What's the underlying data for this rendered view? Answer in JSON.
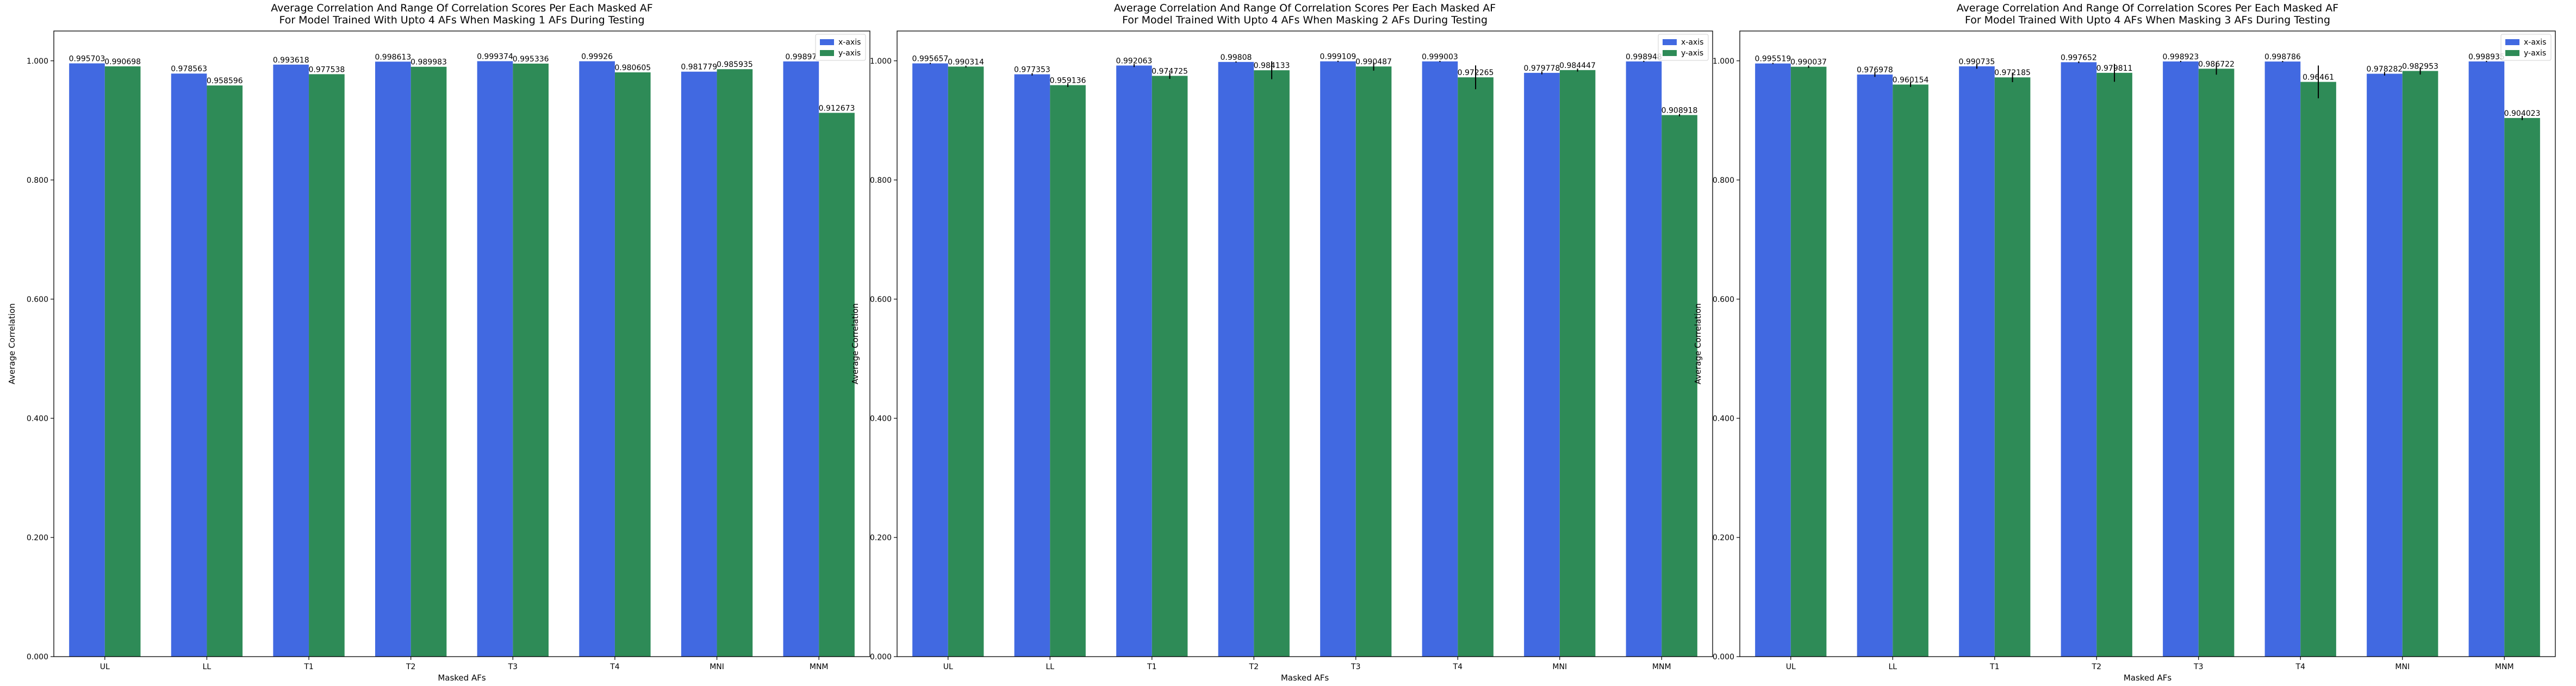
{
  "figure": {
    "x_label": "Masked AFs",
    "y_label": "Average Correlation",
    "y_ticks": [
      "0.000",
      "0.200",
      "0.400",
      "0.600",
      "0.800",
      "1.000"
    ],
    "colors": {
      "x_axis": "#4169e1",
      "y_axis": "#2e8b57",
      "error_bar": "#000000",
      "frame": "#000000"
    }
  },
  "chart_data": [
    {
      "type": "bar",
      "title": "Average Correlation And Range Of Correlation Scores Per Each Masked AF\nFor Model Trained With Upto 4 AFs When Masking 1 AFs During Testing",
      "xlabel": "Masked AFs",
      "ylabel": "Average Correlation",
      "ylim": [
        0,
        1.05
      ],
      "legend_position": "top-right",
      "grid": false,
      "categories": [
        "UL",
        "LL",
        "T1",
        "T2",
        "T3",
        "T4",
        "MNI",
        "MNM"
      ],
      "series": [
        {
          "name": "x-axis",
          "color": "#4169e1",
          "values": [
            0.995703,
            0.978563,
            0.993618,
            0.998613,
            0.999374,
            0.99926,
            0.981779,
            0.99897
          ],
          "labels": [
            "0.995703",
            "0.978563",
            "0.993618",
            "0.998613",
            "0.999374",
            "0.99926",
            "0.981779",
            "0.99897"
          ],
          "errors": [
            0,
            0,
            0,
            0,
            0,
            0,
            0,
            0
          ]
        },
        {
          "name": "y-axis",
          "color": "#2e8b57",
          "values": [
            0.990698,
            0.958596,
            0.977538,
            0.989983,
            0.995336,
            0.980605,
            0.985935,
            0.912673
          ],
          "labels": [
            "0.990698",
            "0.958596",
            "0.977538",
            "0.989983",
            "0.995336",
            "0.980605",
            "0.985935",
            "0.912673"
          ],
          "errors": [
            0,
            0,
            0,
            0,
            0,
            0,
            0,
            0
          ]
        }
      ]
    },
    {
      "type": "bar",
      "title": "Average Correlation And Range Of Correlation Scores Per Each Masked AF\nFor Model Trained With Upto 4 AFs When Masking 2 AFs During Testing",
      "xlabel": "Masked AFs",
      "ylabel": "Average Correlation",
      "ylim": [
        0,
        1.05
      ],
      "legend_position": "top-right",
      "grid": false,
      "categories": [
        "UL",
        "LL",
        "T1",
        "T2",
        "T3",
        "T4",
        "MNI",
        "MNM"
      ],
      "series": [
        {
          "name": "x-axis",
          "color": "#4169e1",
          "values": [
            0.995657,
            0.977353,
            0.992063,
            0.99808,
            0.999109,
            0.999003,
            0.979778,
            0.998948
          ],
          "labels": [
            "0.995657",
            "0.977353",
            "0.992063",
            "0.99808",
            "0.999109",
            "0.999003",
            "0.979778",
            "0.998948"
          ],
          "errors": [
            0.002,
            0.004,
            0.005,
            0.002,
            0.002,
            0.002,
            0.005,
            0.002
          ]
        },
        {
          "name": "y-axis",
          "color": "#2e8b57",
          "values": [
            0.990314,
            0.959136,
            0.974725,
            0.984133,
            0.990487,
            0.972265,
            0.984447,
            0.908918
          ],
          "labels": [
            "0.990314",
            "0.959136",
            "0.974725",
            "0.984133",
            "0.990487",
            "0.972265",
            "0.984447",
            "0.908918"
          ],
          "errors": [
            0.003,
            0.006,
            0.01,
            0.03,
            0.014,
            0.04,
            0.005,
            0.004
          ]
        }
      ]
    },
    {
      "type": "bar",
      "title": "Average Correlation And Range Of Correlation Scores Per Each Masked AF\nFor Model Trained With Upto 4 AFs When Masking 3 AFs During Testing",
      "xlabel": "Masked AFs",
      "ylabel": "Average Correlation",
      "ylim": [
        0,
        1.05
      ],
      "legend_position": "top-right",
      "grid": false,
      "categories": [
        "UL",
        "LL",
        "T1",
        "T2",
        "T3",
        "T4",
        "MNI",
        "MNM"
      ],
      "series": [
        {
          "name": "x-axis",
          "color": "#4169e1",
          "values": [
            0.995519,
            0.976978,
            0.990735,
            0.997652,
            0.998923,
            0.998786,
            0.978282,
            0.998935
          ],
          "labels": [
            "0.995519",
            "0.976978",
            "0.990735",
            "0.997652",
            "0.998923",
            "0.998786",
            "0.978282",
            "0.998935"
          ],
          "errors": [
            0.002,
            0.008,
            0.008,
            0.003,
            0.002,
            0.002,
            0.006,
            0.002
          ]
        },
        {
          "name": "y-axis",
          "color": "#2e8b57",
          "values": [
            0.990037,
            0.960154,
            0.972185,
            0.979811,
            0.986722,
            0.96461,
            0.982953,
            0.904023
          ],
          "labels": [
            "0.990037",
            "0.960154",
            "0.972185",
            "0.979811",
            "0.986722",
            "0.96461",
            "0.982953",
            "0.904023"
          ],
          "errors": [
            0.004,
            0.008,
            0.016,
            0.03,
            0.02,
            0.055,
            0.012,
            0.007
          ]
        }
      ]
    }
  ]
}
